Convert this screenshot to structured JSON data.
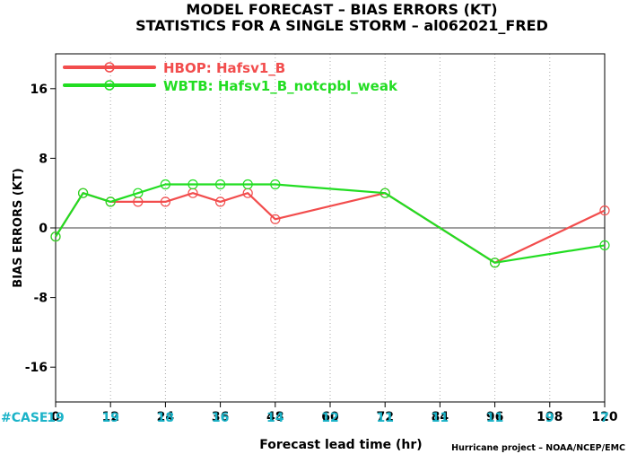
{
  "chart_data": {
    "type": "line",
    "title_line1": "MODEL FORECAST – BIAS ERRORS (KT)",
    "title_line2": "STATISTICS FOR A SINGLE STORM – al062021_FRED",
    "xlabel": "Forecast lead time (hr)",
    "ylabel": "BIAS ERRORS (KT)",
    "xlim": [
      0,
      120
    ],
    "ylim": [
      -20,
      20
    ],
    "x_ticks": [
      0,
      12,
      24,
      36,
      48,
      60,
      72,
      84,
      96,
      108,
      120
    ],
    "y_ticks": [
      -16,
      -8,
      0,
      8,
      16
    ],
    "grid": "vertical dotted",
    "legend_position": "top-left",
    "case_label": "#CASE",
    "case_x": [
      0,
      12,
      24,
      36,
      48,
      60,
      72,
      84,
      96,
      108,
      120
    ],
    "case_counts": [
      19,
      19,
      18,
      16,
      14,
      12,
      11,
      11,
      11,
      9,
      7
    ],
    "credit": "Hurricane project – NOAA/NCEP/EMC",
    "series": [
      {
        "name": "HBOP: Hafsv1_B",
        "color": "#f24d4d",
        "x": [
          0,
          6,
          12,
          18,
          24,
          30,
          36,
          42,
          48,
          72,
          96,
          120
        ],
        "y": [
          -1,
          4,
          3,
          3,
          3,
          4,
          3,
          4,
          1,
          4,
          -4,
          2
        ]
      },
      {
        "name": "WBTB: Hafsv1_B_notcpbl_weak",
        "color": "#22dd22",
        "x": [
          0,
          6,
          12,
          18,
          24,
          30,
          36,
          42,
          48,
          72,
          96,
          120
        ],
        "y": [
          -1,
          4,
          3,
          4,
          5,
          5,
          5,
          5,
          5,
          4,
          -4,
          -2
        ]
      }
    ]
  }
}
